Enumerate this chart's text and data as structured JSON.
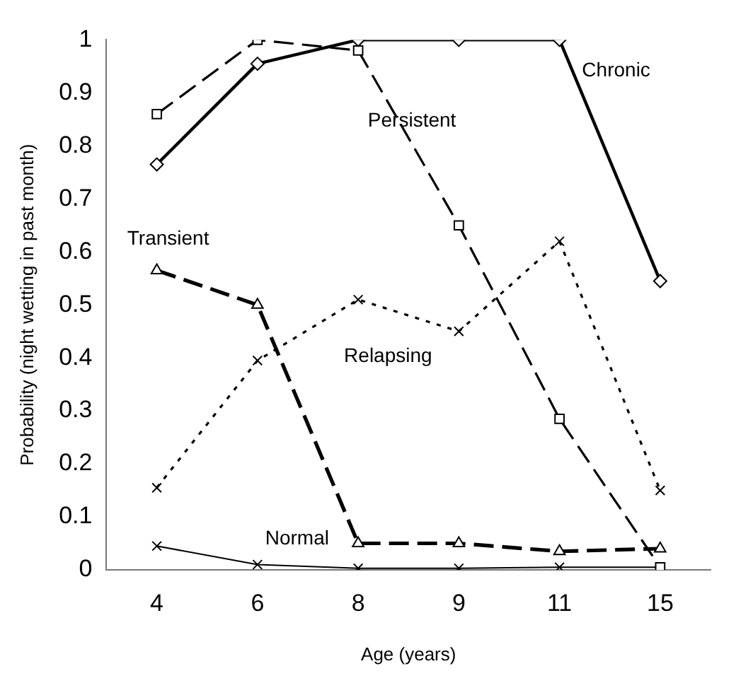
{
  "chart_data": {
    "type": "line",
    "xlabel": "Age (years)",
    "ylabel": "Probability (night wetting in past month)",
    "categories": [
      "4",
      "6",
      "8",
      "9",
      "11",
      "15"
    ],
    "series": [
      {
        "name": "Chronic",
        "color": "#000000",
        "line_style": "solid",
        "marker": "diamond",
        "values": [
          0.765,
          0.955,
          1.0,
          1.0,
          1.0,
          0.545
        ]
      },
      {
        "name": "Persistent",
        "color": "#000000",
        "line_style": "dashed",
        "marker": "square",
        "values": [
          0.86,
          1.0,
          0.98,
          0.65,
          0.285,
          0.005
        ]
      },
      {
        "name": "Transient",
        "color": "#000000",
        "line_style": "dashed",
        "marker": "triangle",
        "values": [
          0.565,
          0.5,
          0.05,
          0.05,
          0.035,
          0.04
        ]
      },
      {
        "name": "Relapsing",
        "color": "#000000",
        "line_style": "dotted",
        "marker": "cross",
        "values": [
          0.155,
          0.395,
          0.51,
          0.45,
          0.62,
          0.15
        ]
      },
      {
        "name": "Normal",
        "color": "#000000",
        "line_style": "solid",
        "marker": "cross",
        "values": [
          0.045,
          0.01,
          0.003,
          0.003,
          0.005,
          0.005
        ]
      }
    ],
    "ylim": [
      0,
      1
    ],
    "yticks": [
      0,
      0.1,
      0.2,
      0.3,
      0.4,
      0.5,
      0.6,
      0.7,
      0.8,
      0.9,
      1
    ],
    "grid": false,
    "legend": false
  }
}
